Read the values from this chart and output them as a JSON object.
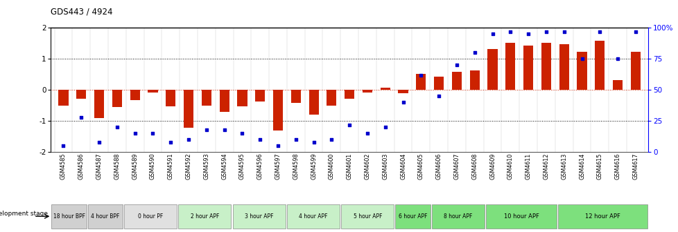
{
  "title": "GDS443 / 4924",
  "samples": [
    "GSM4585",
    "GSM4586",
    "GSM4587",
    "GSM4588",
    "GSM4589",
    "GSM4590",
    "GSM4591",
    "GSM4592",
    "GSM4593",
    "GSM4594",
    "GSM4595",
    "GSM4596",
    "GSM4597",
    "GSM4598",
    "GSM4599",
    "GSM4600",
    "GSM4601",
    "GSM4602",
    "GSM4603",
    "GSM4604",
    "GSM4605",
    "GSM4606",
    "GSM4607",
    "GSM4608",
    "GSM4609",
    "GSM4610",
    "GSM4611",
    "GSM4612",
    "GSM4613",
    "GSM4614",
    "GSM4615",
    "GSM4616",
    "GSM4617"
  ],
  "log_ratios": [
    -0.5,
    -0.28,
    -0.9,
    -0.55,
    -0.32,
    -0.08,
    -0.52,
    -1.22,
    -0.5,
    -0.7,
    -0.52,
    -0.38,
    -1.3,
    -0.42,
    -0.8,
    -0.5,
    -0.28,
    -0.08,
    0.07,
    -0.1,
    0.52,
    0.42,
    0.58,
    0.62,
    1.32,
    1.52,
    1.42,
    1.52,
    1.48,
    1.22,
    1.58,
    0.32,
    1.22
  ],
  "percentile_ranks": [
    5,
    28,
    8,
    20,
    15,
    15,
    8,
    10,
    18,
    18,
    15,
    10,
    5,
    10,
    8,
    10,
    22,
    15,
    20,
    40,
    62,
    45,
    70,
    80,
    95,
    97,
    95,
    97,
    97,
    75,
    97,
    75,
    97
  ],
  "stage_groups": [
    {
      "label": "18 hour BPF",
      "start": 0,
      "end": 2,
      "color": "#d0d0d0"
    },
    {
      "label": "4 hour BPF",
      "start": 2,
      "end": 4,
      "color": "#d0d0d0"
    },
    {
      "label": "0 hour PF",
      "start": 4,
      "end": 7,
      "color": "#e0e0e0"
    },
    {
      "label": "2 hour APF",
      "start": 7,
      "end": 10,
      "color": "#c8f0c8"
    },
    {
      "label": "3 hour APF",
      "start": 10,
      "end": 13,
      "color": "#c8f0c8"
    },
    {
      "label": "4 hour APF",
      "start": 13,
      "end": 16,
      "color": "#c8f0c8"
    },
    {
      "label": "5 hour APF",
      "start": 16,
      "end": 19,
      "color": "#c8f0c8"
    },
    {
      "label": "6 hour APF",
      "start": 19,
      "end": 21,
      "color": "#7de07d"
    },
    {
      "label": "8 hour APF",
      "start": 21,
      "end": 24,
      "color": "#7de07d"
    },
    {
      "label": "10 hour APF",
      "start": 24,
      "end": 28,
      "color": "#7de07d"
    },
    {
      "label": "12 hour APF",
      "start": 28,
      "end": 33,
      "color": "#7de07d"
    }
  ],
  "bar_color": "#cc2200",
  "dot_color": "#0000cc",
  "ylim_left": [
    -2.0,
    2.0
  ],
  "ylim_right": [
    0,
    100
  ],
  "dotted_lines_black": [
    -1.0,
    1.0
  ],
  "zero_line_color": "#cc2200"
}
